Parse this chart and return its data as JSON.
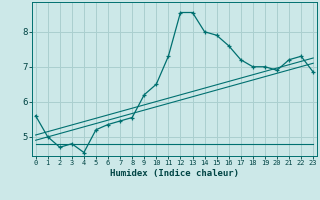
{
  "xlabel": "Humidex (Indice chaleur)",
  "bg_color": "#cce8e8",
  "grid_color": "#aacfcf",
  "line_color": "#007070",
  "x_ticks": [
    0,
    1,
    2,
    3,
    4,
    5,
    6,
    7,
    8,
    9,
    10,
    11,
    12,
    13,
    14,
    15,
    16,
    17,
    18,
    19,
    20,
    21,
    22,
    23
  ],
  "y_ticks": [
    5,
    6,
    7,
    8
  ],
  "xlim": [
    -0.3,
    23.3
  ],
  "ylim": [
    4.45,
    8.85
  ],
  "line1_x": [
    0,
    1,
    2,
    3,
    4,
    5,
    6,
    7,
    8,
    9,
    10,
    11,
    12,
    13,
    14,
    15,
    16,
    17,
    18,
    19,
    20,
    21,
    22,
    23
  ],
  "line1_y": [
    5.6,
    5.0,
    4.7,
    4.8,
    4.55,
    5.2,
    5.35,
    5.45,
    5.55,
    6.2,
    6.5,
    7.3,
    8.55,
    8.55,
    8.0,
    7.9,
    7.6,
    7.2,
    7.0,
    7.0,
    6.9,
    7.2,
    7.3,
    6.85
  ],
  "line2_x": [
    0,
    23
  ],
  "line2_y": [
    4.8,
    4.8
  ],
  "line3_x": [
    0,
    23
  ],
  "line3_y": [
    4.9,
    7.1
  ],
  "line4_x": [
    0,
    23
  ],
  "line4_y": [
    5.05,
    7.25
  ]
}
